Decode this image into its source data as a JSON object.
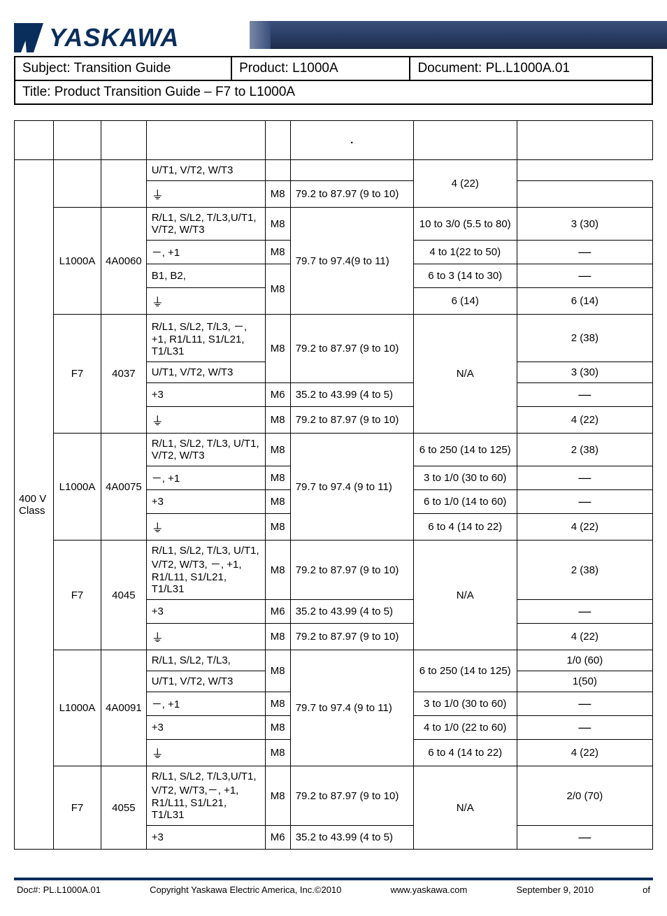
{
  "brand": {
    "name": "YASKAWA"
  },
  "header": {
    "subject_label": "Subject: ",
    "subject_value": "Transition Guide",
    "product_label": "Product:  ",
    "product_value": "L1000A",
    "document_label": "Document: ",
    "document_value": "PL.L1000A.01",
    "title_label": "Title: ",
    "title_value": "Product Transition Guide – F7 to L1000A"
  },
  "table": {
    "columns_count": 8,
    "voltage_class": "400 V Class",
    "ground_glyph": "⏚",
    "groups": [
      {
        "drive": "",
        "model": "",
        "rows": [
          {
            "terminal": "U/T1, V/T2, W/T3",
            "screw": "",
            "torque_join_above": true,
            "wire": "",
            "awg": "4 (22)",
            "awg_rowspan": 2
          },
          {
            "terminal": "GROUND",
            "screw": "M8",
            "torque": "79.2 to 87.97 (9 to 10)",
            "wire": ""
          }
        ]
      },
      {
        "drive": "L1000A",
        "model": "4A0060",
        "rows": [
          {
            "terminal": "R/L1, S/L2, T/L3,U/T1, V/T2, W/T3",
            "screw": "M8",
            "torque": "79.7 to 97.4(9 to 11)",
            "torque_rowspan": 4,
            "wire": "10 to 3/0 (5.5 to 80)",
            "awg": "3 (30)"
          },
          {
            "terminal": "－, +1",
            "screw": "M8",
            "wire": "4 to 1(22 to 50)",
            "awg": "—"
          },
          {
            "terminal": "B1, B2,",
            "screw": "M8",
            "screw_rowspan": 2,
            "wire": "6 to 3 (14 to 30)",
            "awg": "—"
          },
          {
            "terminal": "GROUND",
            "wire": "6 (14)",
            "awg": "6 (14)"
          }
        ]
      },
      {
        "drive": "F7",
        "model": "4037",
        "rows": [
          {
            "terminal": "R/L1, S/L2, T/L3, －, +1, R1/L11, S1/L21, T1/L31",
            "screw": "M8",
            "screw_rowspan": 2,
            "torque": "79.2 to 87.97 (9 to 10)",
            "torque_rowspan": 2,
            "wire": "N/A",
            "wire_rowspan": 4,
            "awg": "2 (38)"
          },
          {
            "terminal": "U/T1, V/T2, W/T3",
            "awg": "3 (30)"
          },
          {
            "terminal": "+3",
            "screw": "M6",
            "torque": "35.2 to 43.99 (4 to 5)",
            "awg": "—"
          },
          {
            "terminal": "GROUND",
            "screw": "M8",
            "torque": "79.2 to 87.97 (9 to 10)",
            "awg": "4 (22)"
          }
        ]
      },
      {
        "drive": "L1000A",
        "model": "4A0075",
        "rows": [
          {
            "terminal": "R/L1, S/L2, T/L3, U/T1, V/T2, W/T3",
            "screw": "M8",
            "torque": "79.7 to 97.4 (9 to 11)",
            "torque_rowspan": 4,
            "wire": "6 to 250 (14 to 125)",
            "awg": "2 (38)"
          },
          {
            "terminal": "－, +1",
            "screw": "M8",
            "wire": "3 to 1/0 (30 to 60)",
            "awg": "—"
          },
          {
            "terminal": "+3",
            "screw": "M8",
            "wire": "6 to 1/0 (14 to 60)",
            "awg": "—"
          },
          {
            "terminal": "GROUND",
            "screw": "M8",
            "wire": "6 to 4 (14 to 22)",
            "awg": "4 (22)"
          }
        ]
      },
      {
        "drive": "F7",
        "model": "4045",
        "rows": [
          {
            "terminal": "R/L1, S/L2, T/L3, U/T1, V/T2, W/T3, －, +1, R1/L11, S1/L21, T1/L31",
            "screw": "M8",
            "torque": "79.2 to 87.97 (9 to 10)",
            "wire": "N/A",
            "wire_rowspan": 3,
            "awg": "2 (38)"
          },
          {
            "terminal": "+3",
            "screw": "M6",
            "torque": "35.2 to 43.99 (4 to 5)",
            "awg": "—"
          },
          {
            "terminal": "GROUND",
            "screw": "M8",
            "torque": "79.2 to 87.97 (9 to 10)",
            "awg": "4 (22)"
          }
        ]
      },
      {
        "drive": "L1000A",
        "model": "4A0091",
        "rows": [
          {
            "terminal": "R/L1, S/L2, T/L3,",
            "screw": "M8",
            "screw_rowspan": 2,
            "torque": "79.7 to 97.4 (9 to 11)",
            "torque_rowspan": 5,
            "wire": "6 to 250 (14 to 125)",
            "wire_rowspan": 2,
            "awg": "1/0 (60)"
          },
          {
            "terminal": "U/T1, V/T2, W/T3",
            "awg": "1(50)"
          },
          {
            "terminal": "－, +1",
            "screw": "M8",
            "wire": "3 to 1/0 (30 to 60)",
            "awg": "—"
          },
          {
            "terminal": "+3",
            "screw": "M8",
            "wire": "4 to 1/0 (22 to 60)",
            "awg": "—"
          },
          {
            "terminal": "GROUND",
            "screw": "M8",
            "wire": "6 to 4 (14 to 22)",
            "awg": "4 (22)"
          }
        ]
      },
      {
        "drive": "F7",
        "model": "4055",
        "rows": [
          {
            "terminal": "R/L1, S/L2, T/L3,U/T1, V/T2, W/T3,－, +1, R1/L11, S1/L21, T1/L31",
            "screw": "M8",
            "torque": "79.2 to 87.97 (9 to 10)",
            "wire": "N/A",
            "wire_rowspan": 2,
            "awg": "2/0 (70)"
          },
          {
            "terminal": "+3",
            "screw": "M6",
            "torque": "35.2 to 43.99 (4 to 5)",
            "awg": "—"
          }
        ]
      }
    ]
  },
  "footer": {
    "doc": "Doc#: PL.L1000A.01",
    "copyright": "Copyright Yaskawa Electric America, Inc.©2010",
    "url": "www.yaskawa.com",
    "date": "September 9, 2010",
    "page": "of"
  },
  "style": {
    "brand_color": "#0a2e5c",
    "border_color": "#000000",
    "font_family": "Arial",
    "table_font_size": 15,
    "header_font_size": 19
  }
}
